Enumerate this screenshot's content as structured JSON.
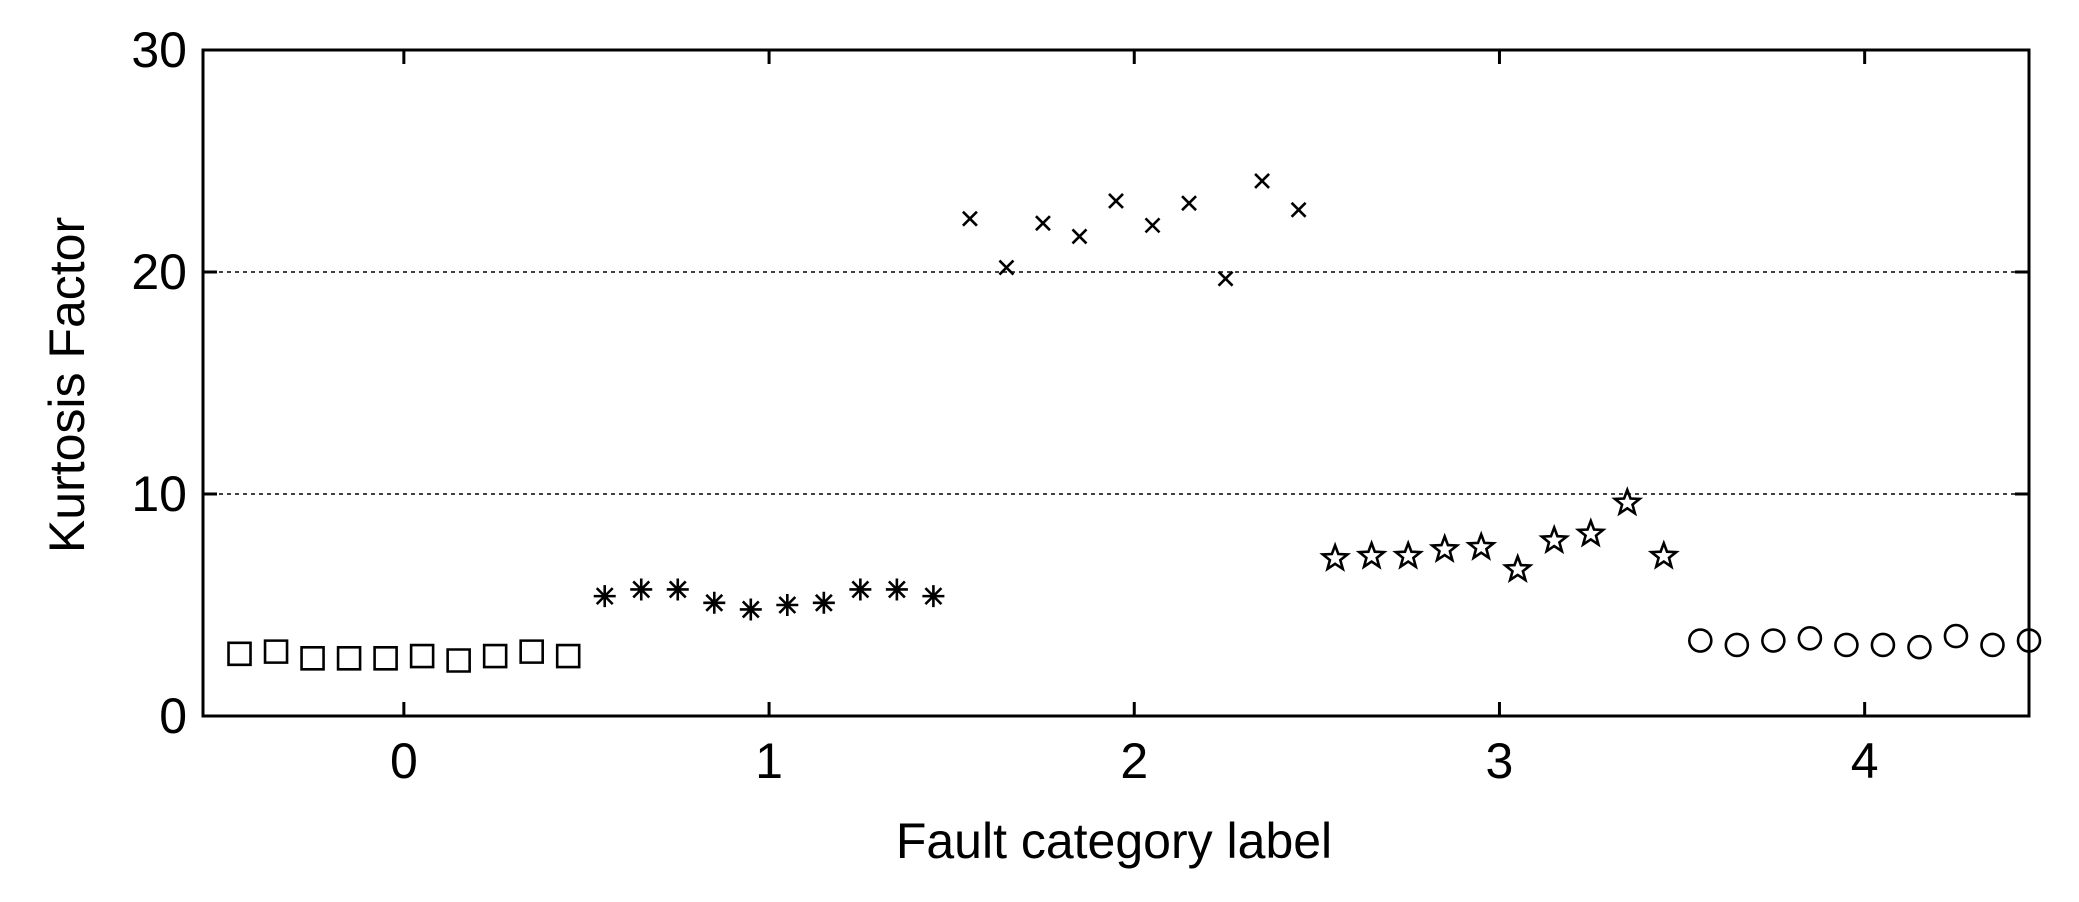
{
  "chart_data": {
    "type": "scatter",
    "xlabel": "Fault category label",
    "ylabel": "Kurtosis Factor",
    "xlim": [
      -0.55,
      4.45
    ],
    "ylim": [
      0,
      30
    ],
    "xticks": [
      0,
      1,
      2,
      3,
      4
    ],
    "yticks": [
      0,
      10,
      20,
      30
    ],
    "grid": true,
    "series": [
      {
        "marker": "square",
        "color": "#000000",
        "x": [
          -0.45,
          -0.35,
          -0.25,
          -0.15,
          -0.05,
          0.05,
          0.15,
          0.25,
          0.35,
          0.45
        ],
        "values": [
          2.8,
          2.9,
          2.6,
          2.6,
          2.6,
          2.7,
          2.5,
          2.7,
          2.9,
          2.7
        ]
      },
      {
        "marker": "asterisk",
        "color": "#000000",
        "x": [
          0.55,
          0.65,
          0.75,
          0.85,
          0.95,
          1.05,
          1.15,
          1.25,
          1.35,
          1.45
        ],
        "values": [
          5.4,
          5.7,
          5.7,
          5.1,
          4.8,
          5.0,
          5.1,
          5.7,
          5.7,
          5.4
        ]
      },
      {
        "marker": "x",
        "color": "#000000",
        "x": [
          1.55,
          1.65,
          1.75,
          1.85,
          1.95,
          2.05,
          2.15,
          2.25,
          2.35,
          2.45
        ],
        "values": [
          22.4,
          20.2,
          22.2,
          21.6,
          23.2,
          22.1,
          23.1,
          19.7,
          24.1,
          22.8
        ]
      },
      {
        "marker": "star",
        "color": "#000000",
        "x": [
          2.55,
          2.65,
          2.75,
          2.85,
          2.95,
          3.05,
          3.15,
          3.25,
          3.35,
          3.45
        ],
        "values": [
          7.1,
          7.2,
          7.2,
          7.5,
          7.6,
          6.6,
          7.9,
          8.2,
          9.6,
          7.2
        ]
      },
      {
        "marker": "circle",
        "color": "#000000",
        "x": [
          3.55,
          3.65,
          3.75,
          3.85,
          3.95,
          4.05,
          4.15,
          4.25,
          4.35,
          4.45
        ],
        "values": [
          3.4,
          3.2,
          3.4,
          3.5,
          3.2,
          3.2,
          3.1,
          3.6,
          3.2,
          3.4
        ]
      }
    ]
  }
}
